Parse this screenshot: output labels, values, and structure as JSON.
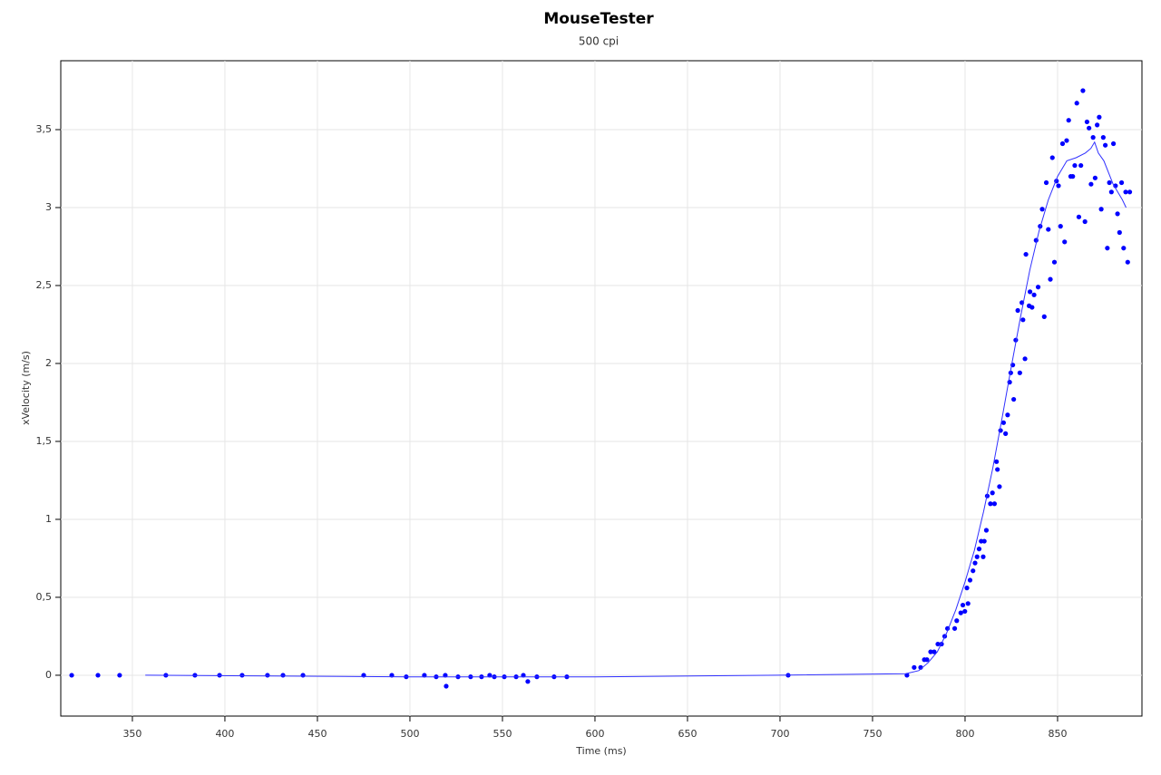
{
  "chart_data": {
    "type": "scatter",
    "title": "MouseTester",
    "subtitle": "500 cpi",
    "x_label": "Time (ms)",
    "y_label": "xVelocity (m/s)",
    "xlim": [
      311.3,
      895.6
    ],
    "ylim": [
      -0.262,
      3.942
    ],
    "xticks": [
      350,
      400,
      450,
      500,
      550,
      600,
      650,
      700,
      750,
      800,
      850
    ],
    "yticks": [
      0,
      {
        "value": 0.5,
        "label": "0,5"
      },
      1,
      {
        "value": 1.5,
        "label": "1,5"
      },
      2,
      {
        "value": 2.5,
        "label": "2,5"
      },
      3,
      {
        "value": 3.5,
        "label": "3,5"
      }
    ],
    "grid": true,
    "series": [
      {
        "mode": "markers",
        "color": "#0000ff",
        "x": [
          317.2,
          331.4,
          343.1,
          368.1,
          383.8,
          397.1,
          409.3,
          423,
          431.4,
          442.2,
          475,
          490.2,
          498,
          507.8,
          514.2,
          519.1,
          519.6,
          526,
          532.8,
          538.7,
          543.1,
          545.6,
          551,
          557.4,
          561.3,
          563.7,
          568.6,
          577.9,
          584.8,
          704.4,
          768.6,
          772.5,
          776,
          778,
          779.4,
          781.4,
          783.3,
          785.3,
          787.3,
          789,
          790.5,
          794.4,
          795.5,
          797.7,
          798.8,
          799.9,
          801,
          801.6,
          802.7,
          804.3,
          805.4,
          806.5,
          807.6,
          808.7,
          809.8,
          810.4,
          811.5,
          812,
          813.7,
          814.8,
          815.9,
          817,
          817.5,
          818.6,
          819.2,
          820.8,
          821.9,
          823,
          824.1,
          824.7,
          825.8,
          826.3,
          827.4,
          828.5,
          829.6,
          830.7,
          831.3,
          832.4,
          832.9,
          834.6,
          835.1,
          836.2,
          837.3,
          838.4,
          839.5,
          840.6,
          841.7,
          842.8,
          843.9,
          845,
          846.1,
          847.2,
          848.3,
          849.4,
          850.5,
          851.6,
          852.7,
          853.8,
          854.9,
          856,
          857.1,
          858.2,
          859.3,
          860.4,
          861.5,
          862.6,
          863.7,
          864.8,
          865.9,
          867,
          868.1,
          869.2,
          870.3,
          871.4,
          872.5,
          873.6,
          874.7,
          875.8,
          876.9,
          878,
          879.1,
          880.2,
          881.3,
          882.4,
          883.5,
          884.6,
          885.7,
          886.8,
          887.9,
          889
        ],
        "values": [
          0,
          0,
          0,
          0,
          0,
          0,
          0,
          0,
          0,
          0,
          0,
          0,
          -0.01,
          0,
          -0.01,
          0,
          -0.07,
          -0.01,
          -0.01,
          -0.01,
          0,
          -0.01,
          -0.01,
          -0.01,
          0,
          -0.04,
          -0.01,
          -0.01,
          -0.01,
          0,
          0,
          0.05,
          0.05,
          0.1,
          0.1,
          0.15,
          0.15,
          0.2,
          0.2,
          0.25,
          0.3,
          0.3,
          0.35,
          0.4,
          0.45,
          0.41,
          0.56,
          0.46,
          0.61,
          0.67,
          0.72,
          0.76,
          0.81,
          0.86,
          0.76,
          0.86,
          0.93,
          1.15,
          1.1,
          1.17,
          1.1,
          1.37,
          1.32,
          1.21,
          1.57,
          1.62,
          1.55,
          1.67,
          1.88,
          1.94,
          1.99,
          1.77,
          2.15,
          2.34,
          1.94,
          2.39,
          2.28,
          2.03,
          2.7,
          2.37,
          2.46,
          2.36,
          2.44,
          2.79,
          2.49,
          2.88,
          2.99,
          2.3,
          3.16,
          2.86,
          2.54,
          3.32,
          2.65,
          3.17,
          3.14,
          2.88,
          3.41,
          2.78,
          3.43,
          3.56,
          3.2,
          3.2,
          3.27,
          3.67,
          2.94,
          3.27,
          3.75,
          2.91,
          3.55,
          3.51,
          3.15,
          3.45,
          3.19,
          3.53,
          3.58,
          2.99,
          3.45,
          3.4,
          2.74,
          3.16,
          3.1,
          3.41,
          3.14,
          2.96,
          2.84,
          3.16,
          2.74,
          3.1,
          2.65,
          3.1
        ]
      },
      {
        "mode": "line",
        "color": "#3030ff",
        "x": [
          357,
          500,
          600,
          700,
          768,
          775,
          780,
          785,
          790,
          795,
          800,
          805,
          810,
          815,
          820,
          825,
          830,
          835,
          840,
          845,
          850,
          855,
          860,
          865,
          868,
          870,
          872,
          875,
          880,
          885,
          887
        ],
        "values": [
          0,
          -0.01,
          -0.01,
          0,
          0.01,
          0.03,
          0.08,
          0.15,
          0.27,
          0.42,
          0.6,
          0.8,
          1.05,
          1.33,
          1.65,
          1.98,
          2.3,
          2.6,
          2.85,
          3.05,
          3.2,
          3.3,
          3.32,
          3.35,
          3.38,
          3.42,
          3.35,
          3.3,
          3.15,
          3.05,
          3.0
        ]
      }
    ]
  }
}
